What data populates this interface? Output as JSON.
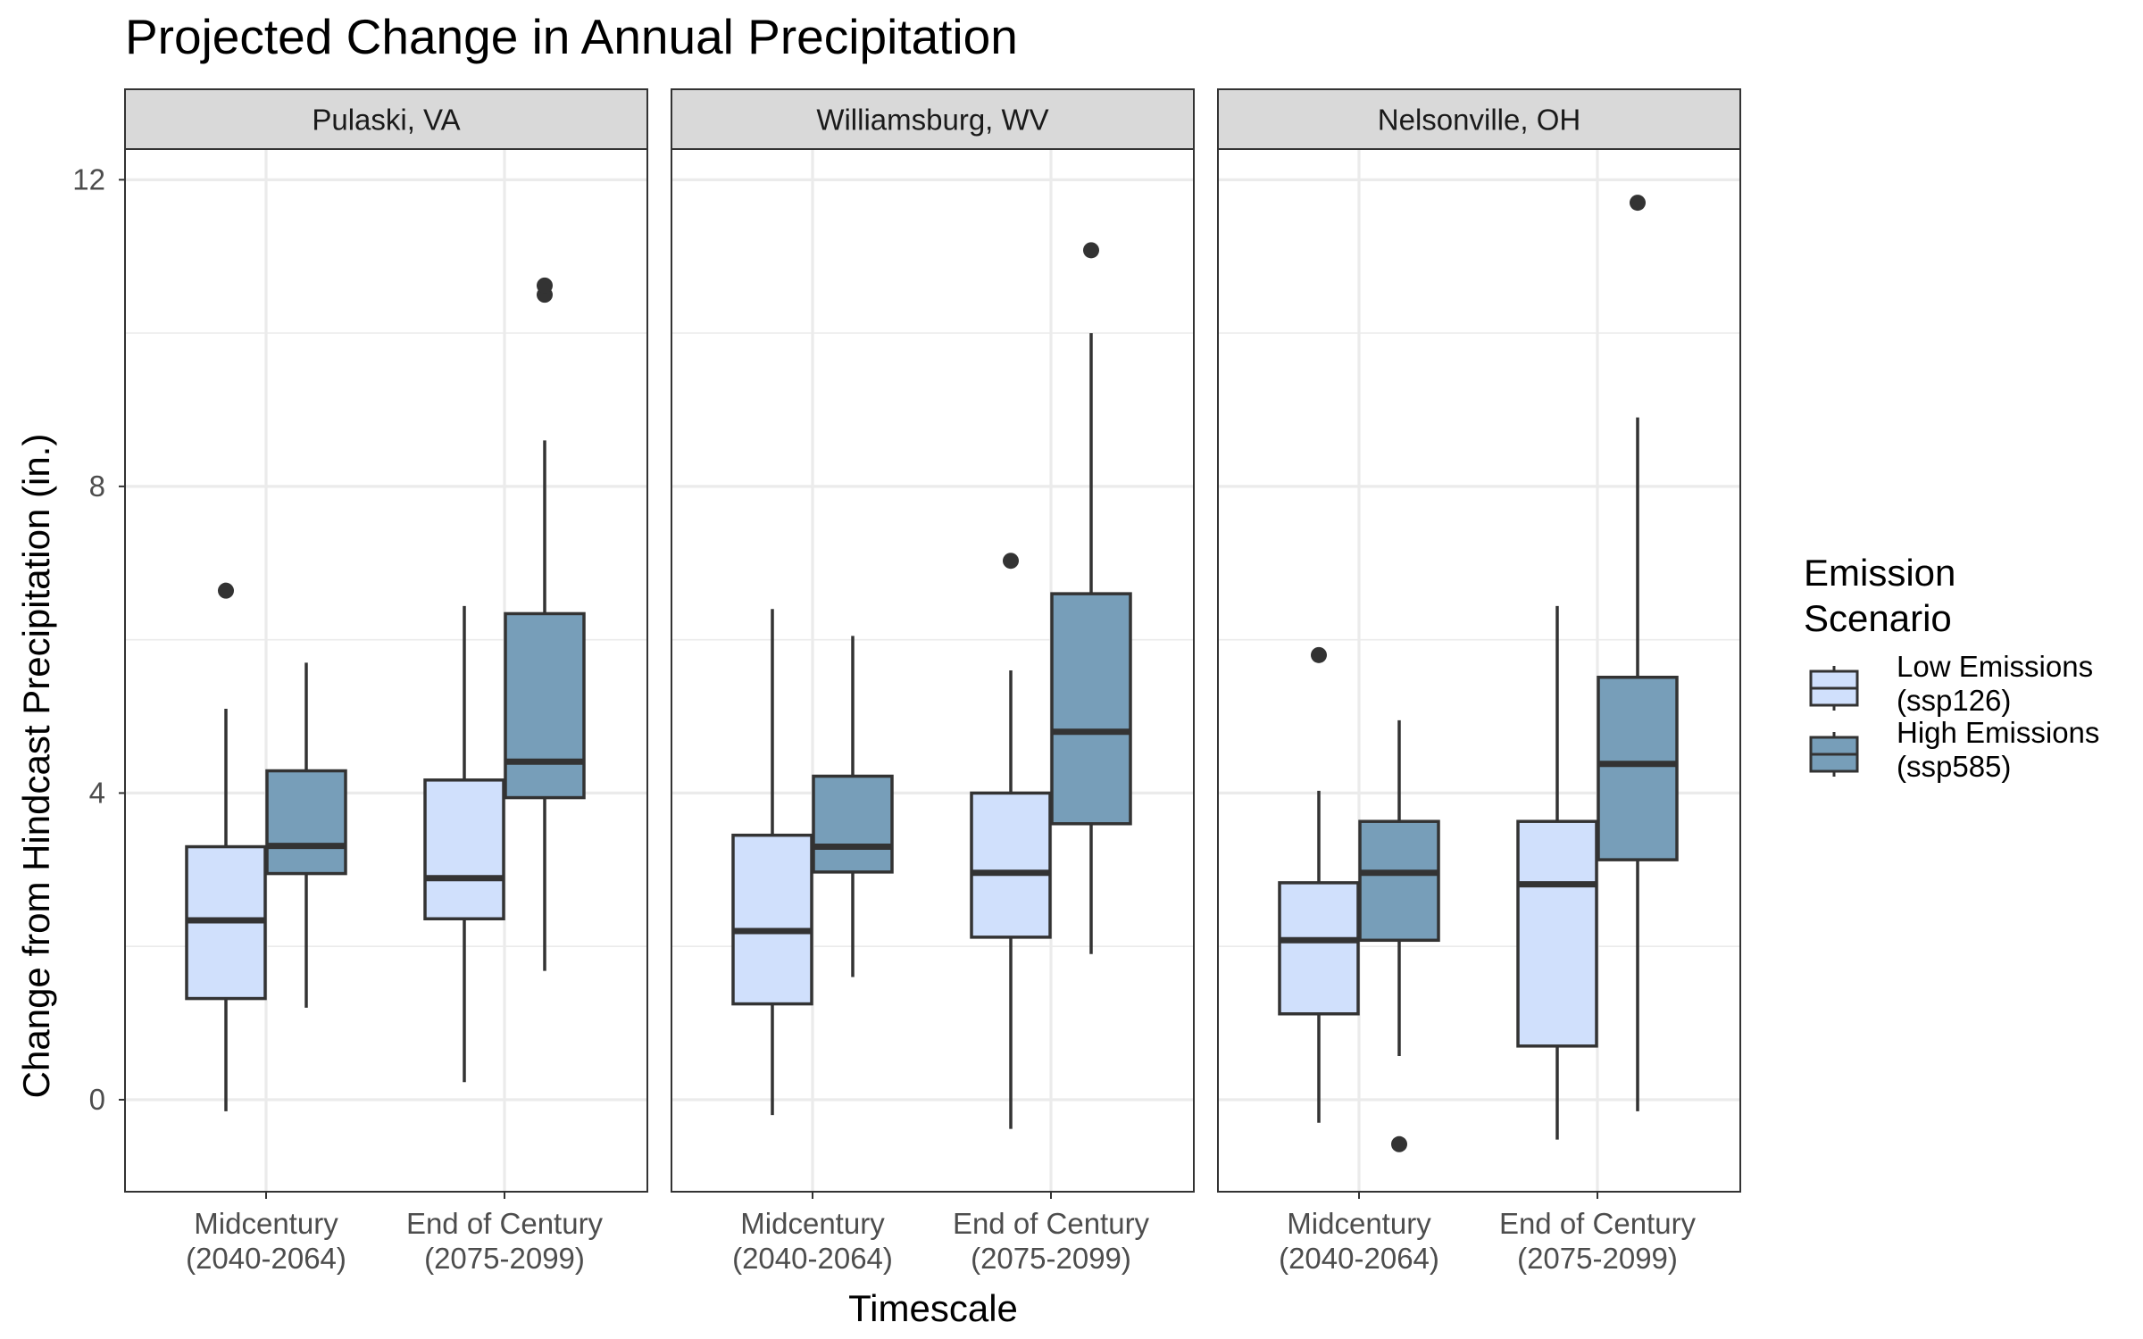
{
  "chart_data": {
    "type": "box",
    "title": "Projected Change in Annual Precipitation",
    "xlabel": "Timescale",
    "ylabel": "Change from Hindcast Precipitation (in.)",
    "ylim": [
      -1.2,
      12.4
    ],
    "yticks": [
      0,
      4,
      8,
      12
    ],
    "grid": true,
    "categories": [
      [
        "Midcentury",
        "(2040-2064)"
      ],
      [
        "End of Century",
        "(2075-2099)"
      ]
    ],
    "legend": {
      "title": [
        "Emission",
        "Scenario"
      ],
      "position": "right",
      "entries": [
        {
          "label": [
            "Low Emissions",
            "(ssp126)"
          ],
          "color": "#d0e0fc"
        },
        {
          "label": [
            "High Emissions",
            "(ssp585)"
          ],
          "color": "#779eb9"
        }
      ]
    },
    "colors": {
      "low": "#d0e0fc",
      "high": "#779eb9",
      "outline": "#333333",
      "strip_fill": "#d9d9d9",
      "grid": "#ebebeb"
    },
    "panels": [
      {
        "name": "Pulaski, VA",
        "boxes": [
          {
            "category": 0,
            "scenario": "low",
            "whisker_low": -0.15,
            "q1": 1.32,
            "median": 2.34,
            "q3": 3.3,
            "whisker_high": 5.1,
            "outliers": [
              6.64
            ]
          },
          {
            "category": 0,
            "scenario": "high",
            "whisker_low": 1.2,
            "q1": 2.95,
            "median": 3.31,
            "q3": 4.29,
            "whisker_high": 5.7,
            "outliers": []
          },
          {
            "category": 1,
            "scenario": "low",
            "whisker_low": 0.23,
            "q1": 2.36,
            "median": 2.89,
            "q3": 4.17,
            "whisker_high": 6.44,
            "outliers": []
          },
          {
            "category": 1,
            "scenario": "high",
            "whisker_low": 1.68,
            "q1": 3.94,
            "median": 4.41,
            "q3": 6.34,
            "whisker_high": 8.6,
            "outliers": [
              10.5,
              10.62
            ]
          }
        ]
      },
      {
        "name": "Williamsburg, WV",
        "boxes": [
          {
            "category": 0,
            "scenario": "low",
            "whisker_low": -0.2,
            "q1": 1.25,
            "median": 2.2,
            "q3": 3.45,
            "whisker_high": 6.4,
            "outliers": []
          },
          {
            "category": 0,
            "scenario": "high",
            "whisker_low": 1.6,
            "q1": 2.97,
            "median": 3.3,
            "q3": 4.22,
            "whisker_high": 6.05,
            "outliers": []
          },
          {
            "category": 1,
            "scenario": "low",
            "whisker_low": -0.38,
            "q1": 2.12,
            "median": 2.96,
            "q3": 4.0,
            "whisker_high": 5.6,
            "outliers": [
              7.03
            ]
          },
          {
            "category": 1,
            "scenario": "high",
            "whisker_low": 1.9,
            "q1": 3.6,
            "median": 4.8,
            "q3": 6.6,
            "whisker_high": 10.0,
            "outliers": [
              11.08
            ]
          }
        ]
      },
      {
        "name": "Nelsonville, OH",
        "boxes": [
          {
            "category": 0,
            "scenario": "low",
            "whisker_low": -0.3,
            "q1": 1.12,
            "median": 2.08,
            "q3": 2.83,
            "whisker_high": 4.03,
            "outliers": [
              5.8
            ]
          },
          {
            "category": 0,
            "scenario": "high",
            "whisker_low": 0.57,
            "q1": 2.08,
            "median": 2.96,
            "q3": 3.63,
            "whisker_high": 4.95,
            "outliers": [
              -0.58
            ]
          },
          {
            "category": 1,
            "scenario": "low",
            "whisker_low": -0.52,
            "q1": 0.7,
            "median": 2.81,
            "q3": 3.63,
            "whisker_high": 6.44,
            "outliers": []
          },
          {
            "category": 1,
            "scenario": "high",
            "whisker_low": -0.15,
            "q1": 3.13,
            "median": 4.38,
            "q3": 5.51,
            "whisker_high": 8.9,
            "outliers": [
              11.7
            ]
          }
        ]
      }
    ]
  }
}
